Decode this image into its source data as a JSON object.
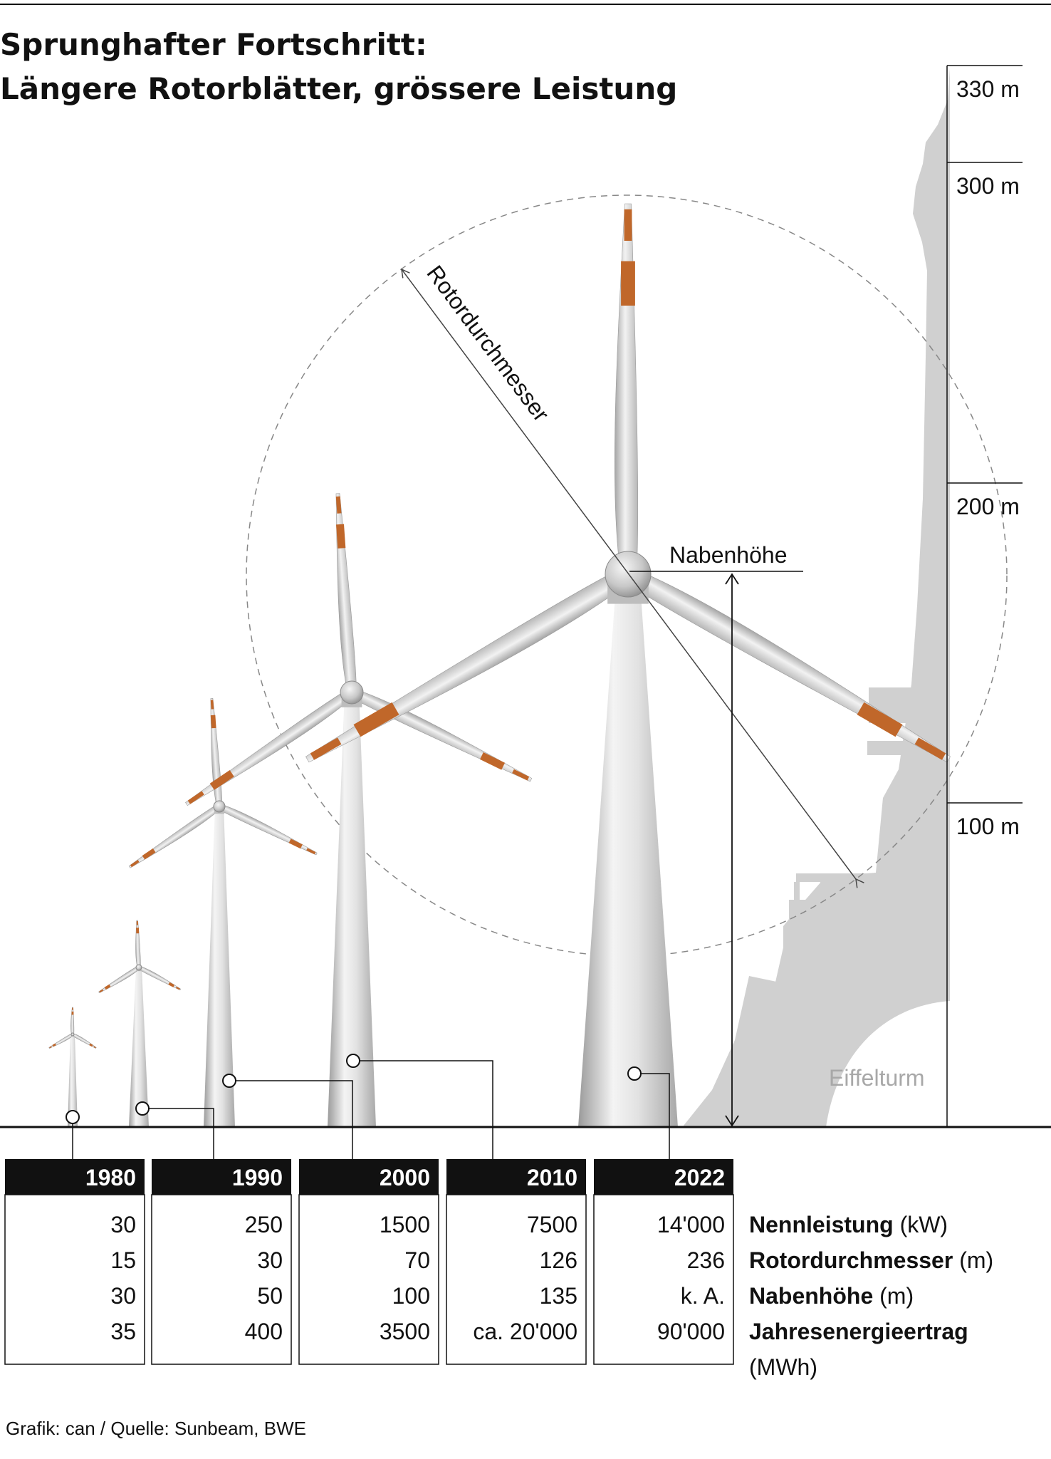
{
  "title": {
    "line1": "Sprunghafter Fortschritt:",
    "line2": "Längere Rotorblätter, grössere Leistung"
  },
  "scale_labels": [
    "330 m",
    "300 m",
    "200 m",
    "100 m"
  ],
  "annotations": {
    "rotor_diameter": "Rotordurchmesser",
    "hub_height": "Nabenhöhe",
    "eiffel": "Eiffelturm"
  },
  "table": {
    "years": [
      "1980",
      "1990",
      "2000",
      "2010",
      "2022"
    ],
    "rows": [
      {
        "label": "Nennleistung",
        "unit": "(kW)",
        "values": [
          "30",
          "250",
          "1500",
          "7500",
          "14'000"
        ]
      },
      {
        "label": "Rotordurchmesser",
        "unit": "(m)",
        "values": [
          "15",
          "30",
          "70",
          "126",
          "236"
        ]
      },
      {
        "label": "Nabenhöhe",
        "unit": "(m)",
        "values": [
          "30",
          "50",
          "100",
          "135",
          "k. A."
        ]
      },
      {
        "label": "Jahresenergieertrag",
        "unit": "(MWh)",
        "values": [
          "35",
          "400",
          "3500",
          "ca. 20'000",
          "90'000"
        ]
      }
    ]
  },
  "source": "Grafik: can / Quelle: Sunbeam, BWE",
  "colors": {
    "blade_tip": "#c0672a",
    "tower_gray": "#d2d2d2",
    "eiffel_gray": "#d0d0d0",
    "dark": "#111111"
  }
}
